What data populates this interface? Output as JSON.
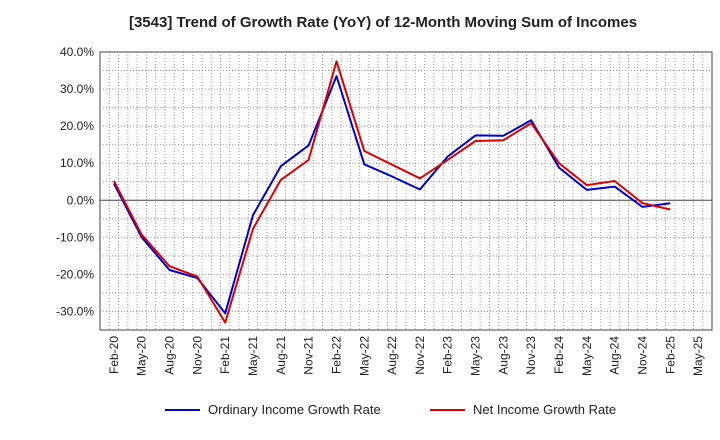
{
  "chart_data": {
    "type": "line",
    "title": "[3543]  Trend of Growth Rate (YoY) of 12-Month Moving Sum of Incomes",
    "xlabel": "",
    "ylabel": "",
    "ylim": [
      -35,
      40
    ],
    "y_ticks": [
      "40.0%",
      "30.0%",
      "20.0%",
      "10.0%",
      "0.0%",
      "-10.0%",
      "-20.0%",
      "-30.0%"
    ],
    "y_tick_values": [
      40,
      30,
      20,
      10,
      0,
      -10,
      -20,
      -30
    ],
    "x_tick_labels": [
      "Feb-20",
      "May-20",
      "Aug-20",
      "Nov-20",
      "Feb-21",
      "May-21",
      "Aug-21",
      "Nov-21",
      "Feb-22",
      "May-22",
      "Aug-22",
      "Nov-22",
      "Feb-23",
      "May-23",
      "Aug-23",
      "Nov-23",
      "Feb-24",
      "May-24",
      "Aug-24",
      "Nov-24",
      "Feb-25",
      "May-25"
    ],
    "grid": true,
    "legend_position": "bottom",
    "series": [
      {
        "name": "Ordinary Income Growth Rate",
        "color": "#0000cc",
        "values": [
          4.5,
          -10.0,
          -18.8,
          -21.0,
          -30.5,
          -4.0,
          9.2,
          14.8,
          33.5,
          9.7,
          6.4,
          2.9,
          11.8,
          17.5,
          17.4,
          21.6,
          8.8,
          2.8,
          3.7,
          -1.8,
          -0.8,
          null
        ]
      },
      {
        "name": "Net Income Growth Rate",
        "color": "#dd0000",
        "values": [
          5.2,
          -9.3,
          -17.8,
          -20.6,
          -33.0,
          -7.7,
          5.5,
          10.9,
          37.5,
          13.3,
          9.6,
          5.9,
          10.9,
          16.0,
          16.2,
          20.8,
          10.0,
          4.1,
          5.2,
          -0.8,
          -2.5,
          null
        ]
      }
    ]
  }
}
